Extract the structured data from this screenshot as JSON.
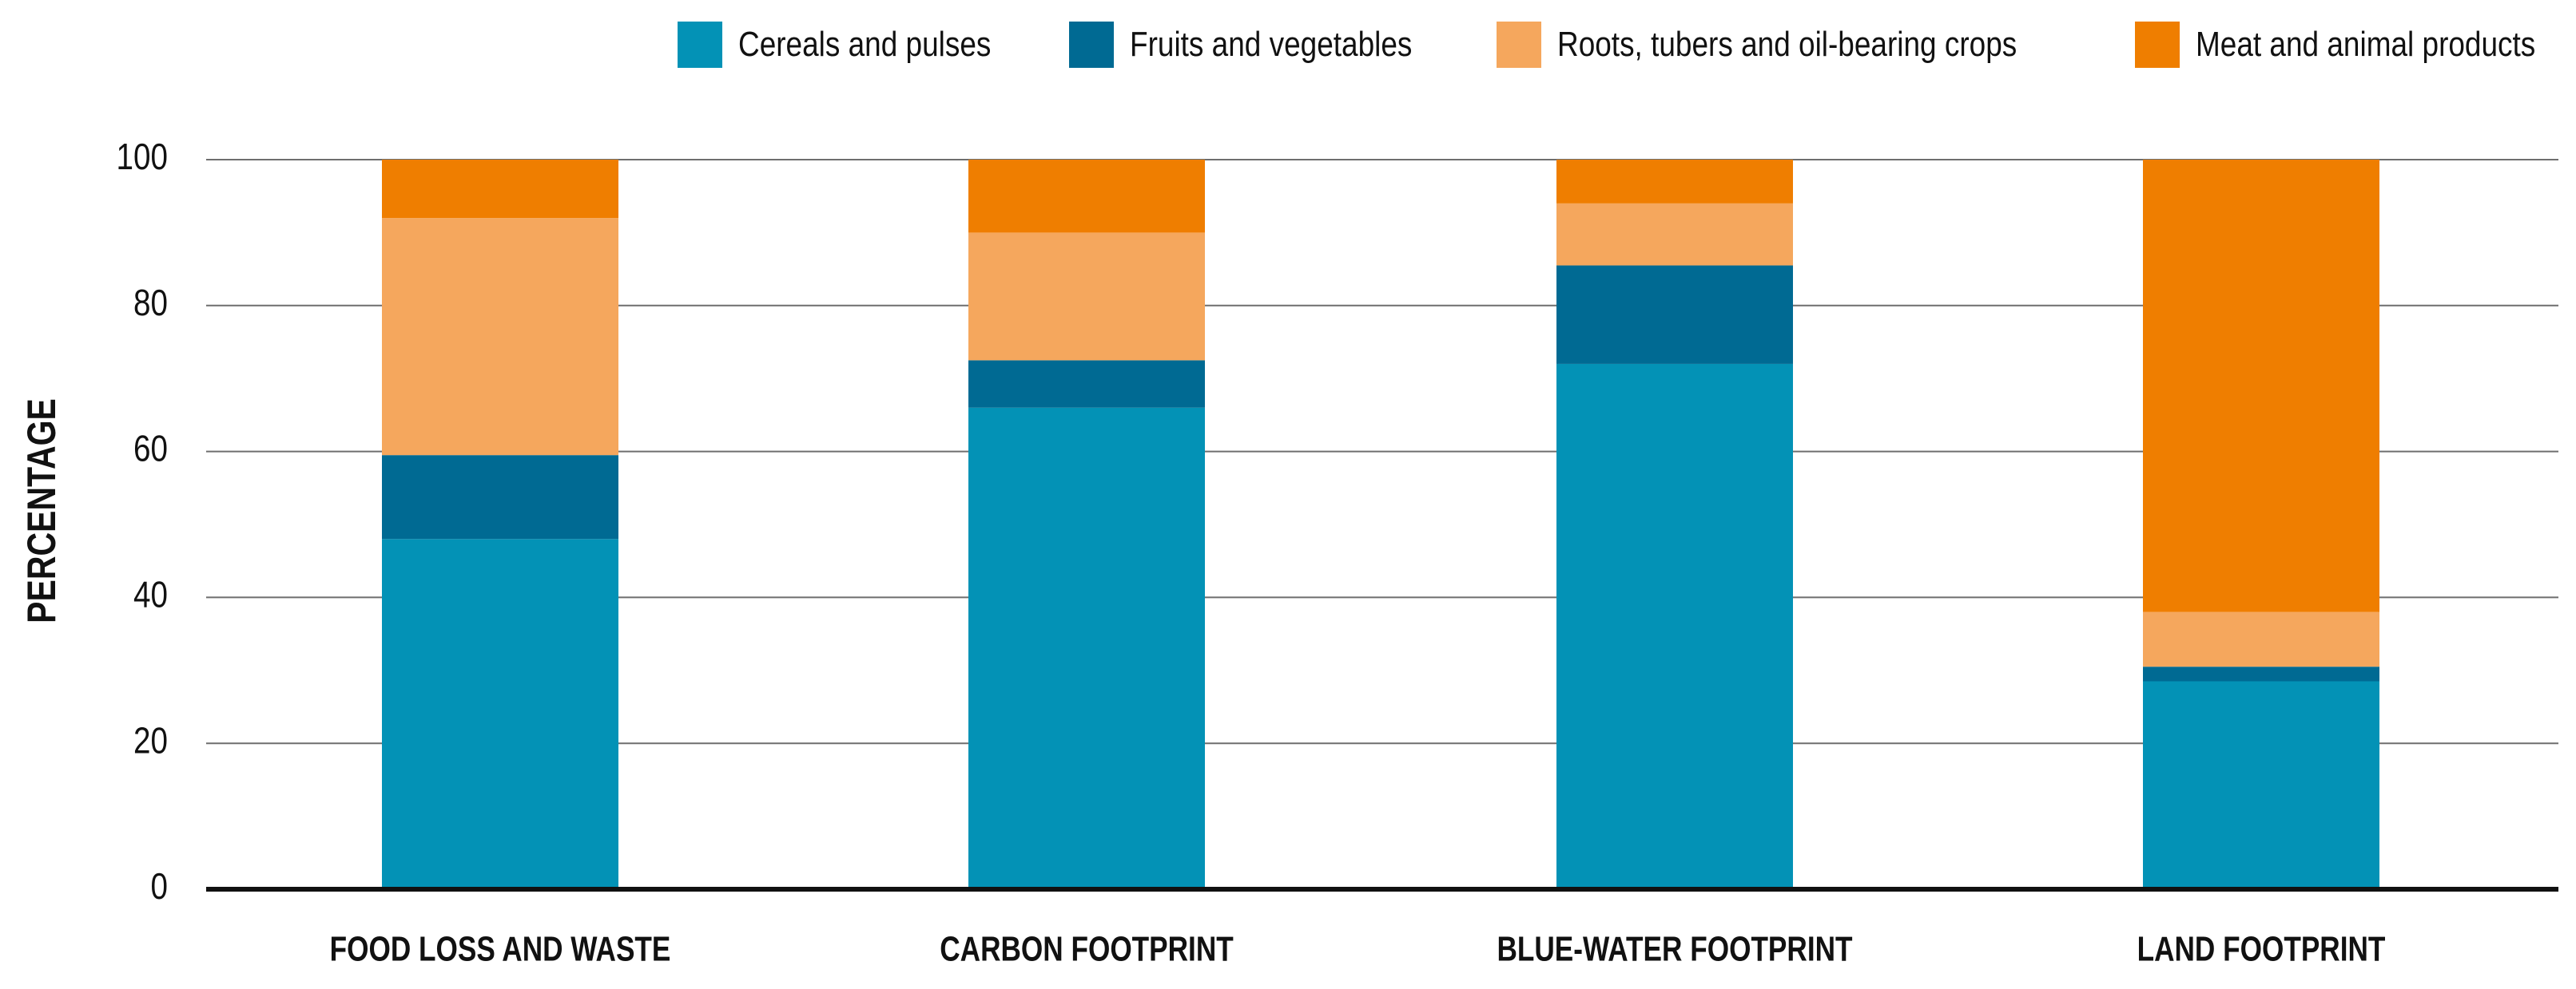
{
  "chart_data": {
    "type": "bar",
    "stacked": true,
    "title": "",
    "xlabel": "",
    "ylabel": "PERCENTAGE",
    "ylim": [
      0,
      100
    ],
    "yticks": [
      0,
      20,
      40,
      60,
      80,
      100
    ],
    "grid": true,
    "legend_position": "top-right",
    "categories": [
      "FOOD LOSS AND WASTE",
      "CARBON FOOTPRINT",
      "BLUE-WATER FOOTPRINT",
      "LAND FOOTPRINT"
    ],
    "series": [
      {
        "name": "Cereals and pulses",
        "color": "#0392b6",
        "values": [
          48,
          66,
          72,
          28.5
        ]
      },
      {
        "name": "Fruits and vegetables",
        "color": "#006a93",
        "values": [
          11.5,
          6.5,
          13.5,
          2
        ]
      },
      {
        "name": "Roots, tubers and oil-bearing crops",
        "color": "#f5a75d",
        "values": [
          32.5,
          17.5,
          8.5,
          7.5
        ]
      },
      {
        "name": "Meat and animal products",
        "color": "#ef7e00",
        "values": [
          8,
          10,
          6,
          62
        ]
      }
    ]
  }
}
